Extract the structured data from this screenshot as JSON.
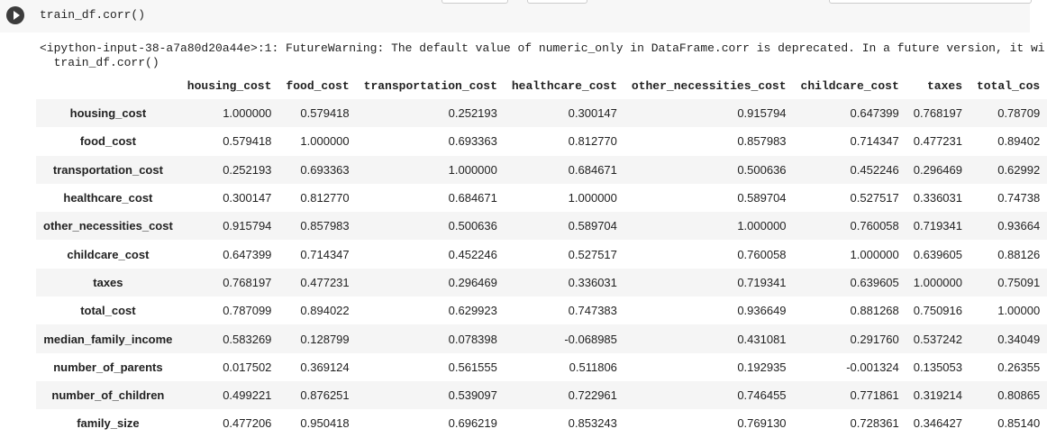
{
  "cell": {
    "code": "train_df.corr()"
  },
  "output": {
    "warning": [
      "<ipython-input-38-a7a80d20a44e>:1: FutureWarning: The default value of numeric_only in DataFrame.corr is deprecated. In a future version, it wi",
      "  train_df.corr()"
    ]
  },
  "table": {
    "columns": [
      "housing_cost",
      "food_cost",
      "transportation_cost",
      "healthcare_cost",
      "other_necessities_cost",
      "childcare_cost",
      "taxes",
      "total_cos"
    ],
    "rows": [
      [
        "housing_cost",
        "1.000000",
        "0.579418",
        "0.252193",
        "0.300147",
        "0.915794",
        "0.647399",
        "0.768197",
        "0.78709"
      ],
      [
        "food_cost",
        "0.579418",
        "1.000000",
        "0.693363",
        "0.812770",
        "0.857983",
        "0.714347",
        "0.477231",
        "0.89402"
      ],
      [
        "transportation_cost",
        "0.252193",
        "0.693363",
        "1.000000",
        "0.684671",
        "0.500636",
        "0.452246",
        "0.296469",
        "0.62992"
      ],
      [
        "healthcare_cost",
        "0.300147",
        "0.812770",
        "0.684671",
        "1.000000",
        "0.589704",
        "0.527517",
        "0.336031",
        "0.74738"
      ],
      [
        "other_necessities_cost",
        "0.915794",
        "0.857983",
        "0.500636",
        "0.589704",
        "1.000000",
        "0.760058",
        "0.719341",
        "0.93664"
      ],
      [
        "childcare_cost",
        "0.647399",
        "0.714347",
        "0.452246",
        "0.527517",
        "0.760058",
        "1.000000",
        "0.639605",
        "0.88126"
      ],
      [
        "taxes",
        "0.768197",
        "0.477231",
        "0.296469",
        "0.336031",
        "0.719341",
        "0.639605",
        "1.000000",
        "0.75091"
      ],
      [
        "total_cost",
        "0.787099",
        "0.894022",
        "0.629923",
        "0.747383",
        "0.936649",
        "0.881268",
        "0.750916",
        "1.00000"
      ],
      [
        "median_family_income",
        "0.583269",
        "0.128799",
        "0.078398",
        "-0.068985",
        "0.431081",
        "0.291760",
        "0.537242",
        "0.34049"
      ],
      [
        "number_of_parents",
        "0.017502",
        "0.369124",
        "0.561555",
        "0.511806",
        "0.192935",
        "-0.001324",
        "0.135053",
        "0.26355"
      ],
      [
        "number_of_children",
        "0.499221",
        "0.876251",
        "0.539097",
        "0.722961",
        "0.746455",
        "0.771861",
        "0.319214",
        "0.80865"
      ],
      [
        "family_size",
        "0.477206",
        "0.950418",
        "0.696219",
        "0.853243",
        "0.769130",
        "0.728361",
        "0.346427",
        "0.85140"
      ]
    ]
  }
}
